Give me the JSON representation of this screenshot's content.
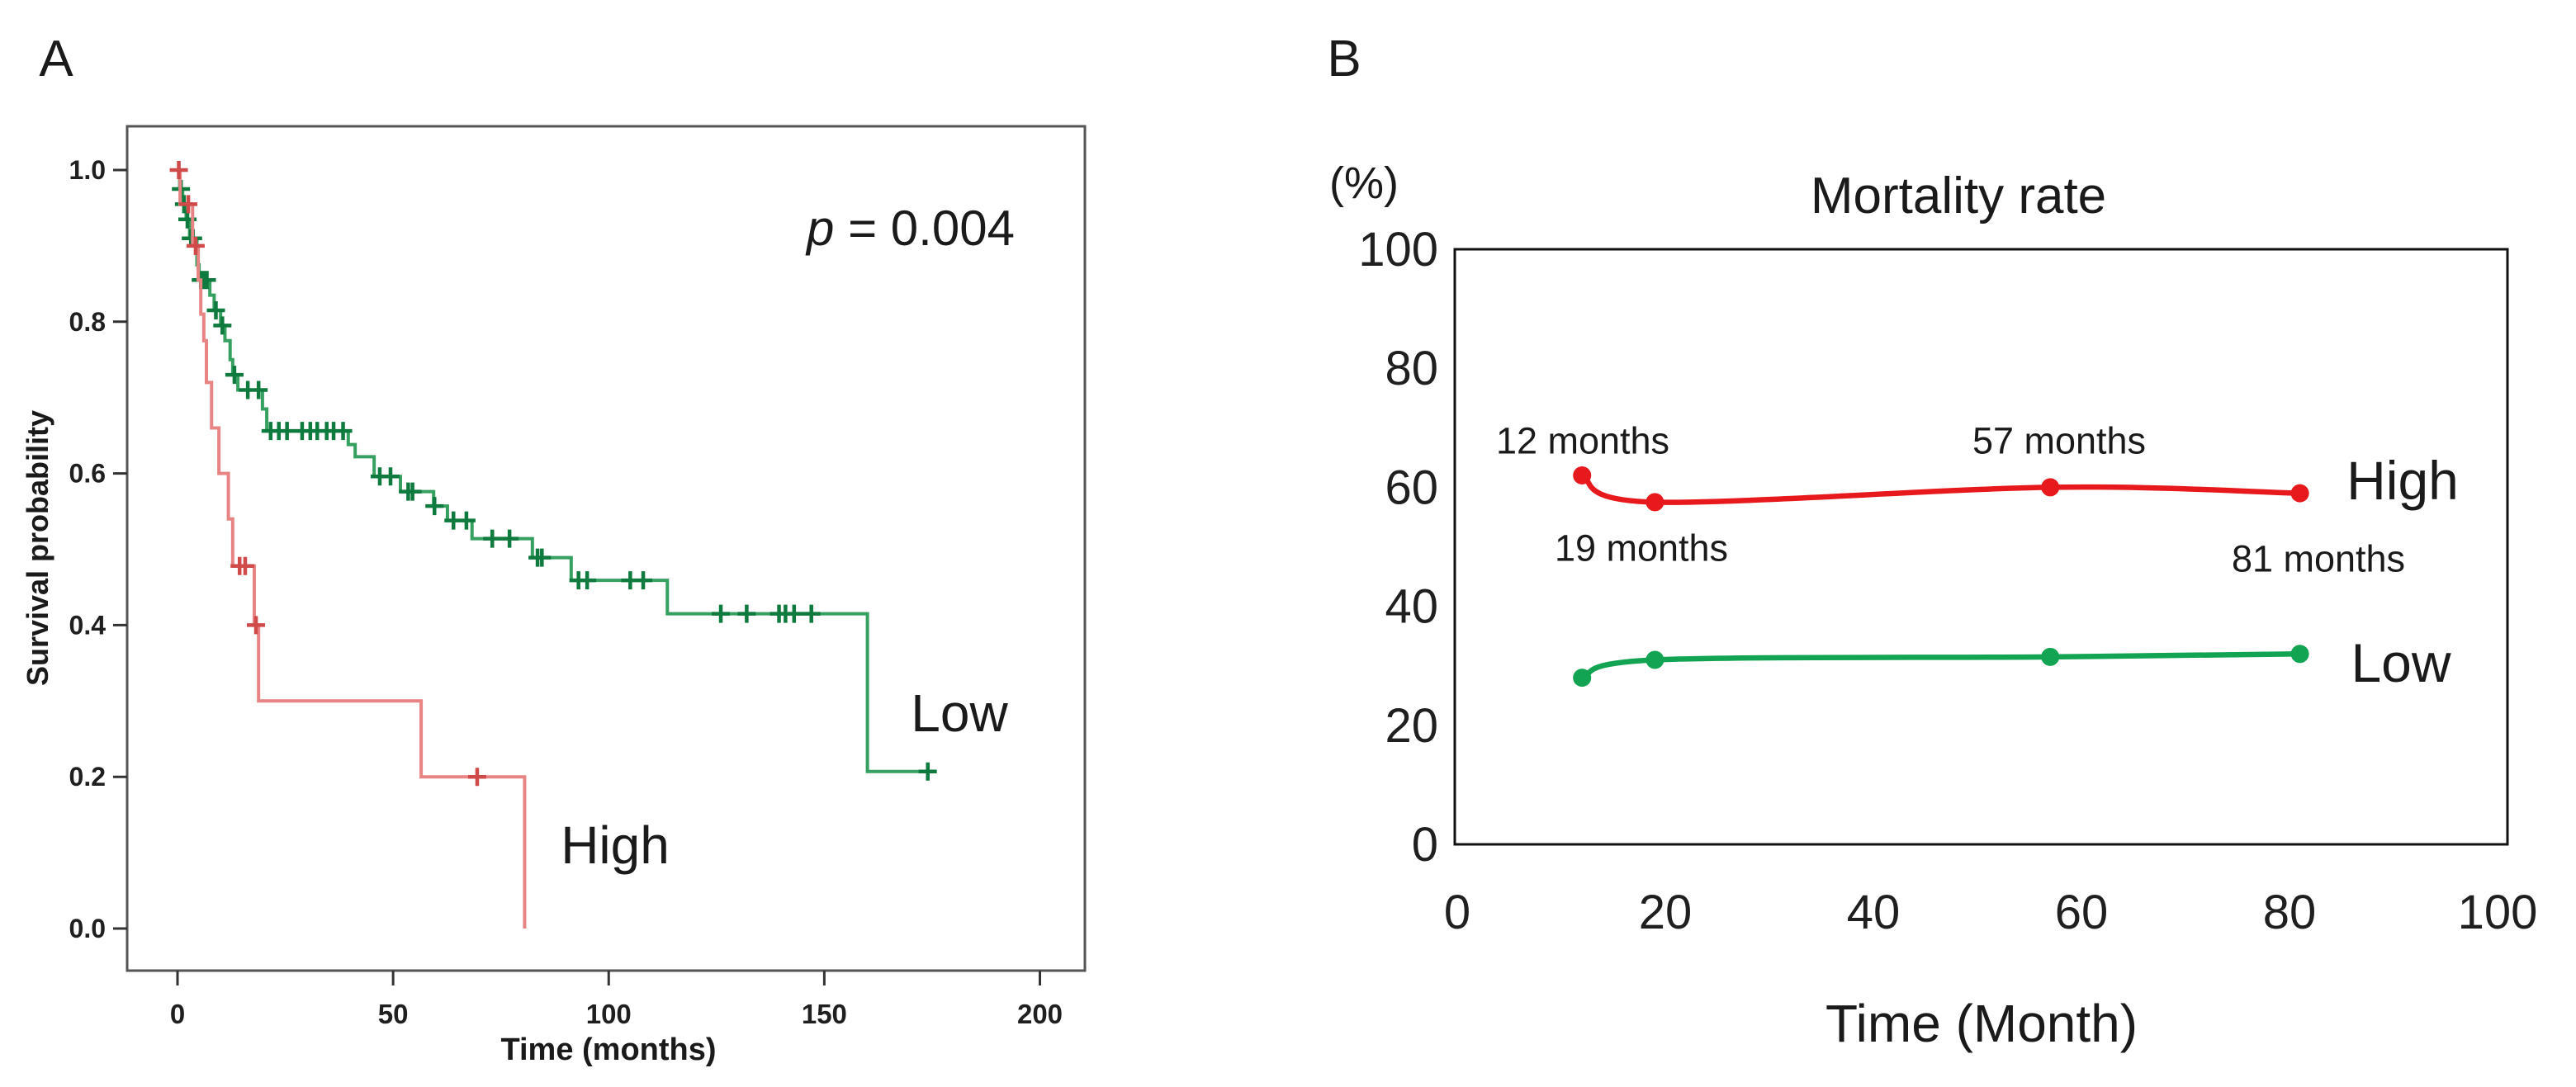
{
  "panel_a": {
    "label": "A",
    "y_axis_title": "Survival probability",
    "x_axis_title": "Time (months)",
    "p_italic": "p",
    "p_rest": " = 0.004",
    "low_label": "Low",
    "high_label": "High",
    "y_ticks": [
      "1.0",
      "0.8",
      "0.6",
      "0.4",
      "0.2",
      "0.0"
    ],
    "x_ticks": [
      "0",
      "50",
      "100",
      "150",
      "200"
    ],
    "colors": {
      "low_line": "#35a05f",
      "low_censor": "#0e7a3e",
      "high_line": "#e88484",
      "high_censor": "#d04a4a",
      "frame": "#555555"
    }
  },
  "panel_b": {
    "label": "B",
    "percent_label": "(%)",
    "title": "Mortality rate",
    "x_axis_title": "Time (Month)",
    "high_label": "High",
    "low_label": "Low",
    "y_ticks": [
      "100",
      "80",
      "60",
      "40",
      "20",
      "0"
    ],
    "x_ticks": [
      "0",
      "20",
      "40",
      "60",
      "80",
      "100"
    ],
    "annotations": {
      "a12": "12 months",
      "a19": "19 months",
      "a57": "57 months",
      "a81": "81 months"
    },
    "colors": {
      "high_line": "#e8191c",
      "low_line": "#12a452",
      "frame": "#111111"
    }
  },
  "chart_data": [
    {
      "type": "line",
      "subtype": "kaplan-meier",
      "panel": "A",
      "title": "",
      "xlabel": "Time (months)",
      "ylabel": "Survival probability",
      "xlim": [
        0,
        200
      ],
      "ylim": [
        0.0,
        1.0
      ],
      "x_tick_values": [
        0,
        50,
        100,
        150,
        200
      ],
      "y_tick_values": [
        1.0,
        0.8,
        0.6,
        0.4,
        0.2,
        0.0
      ],
      "annotation": "p = 0.004",
      "grid": false,
      "series": [
        {
          "name": "Low",
          "color": "green",
          "end_time": 176,
          "steps": [
            [
              0,
              1.0
            ],
            [
              0.5,
              0.975
            ],
            [
              1.2,
              0.955
            ],
            [
              2.0,
              0.935
            ],
            [
              2.8,
              0.91
            ],
            [
              4.5,
              0.875
            ],
            [
              5.0,
              0.855
            ],
            [
              7.5,
              0.835
            ],
            [
              8.5,
              0.815
            ],
            [
              10,
              0.795
            ],
            [
              11,
              0.775
            ],
            [
              12.2,
              0.75
            ],
            [
              12.8,
              0.73
            ],
            [
              14,
              0.71
            ],
            [
              19.7,
              0.685
            ],
            [
              20.7,
              0.656
            ],
            [
              39.6,
              0.638
            ],
            [
              41.2,
              0.622
            ],
            [
              45.6,
              0.596
            ],
            [
              51.7,
              0.576
            ],
            [
              59.4,
              0.557
            ],
            [
              62.6,
              0.538
            ],
            [
              68.3,
              0.514
            ],
            [
              82.3,
              0.489
            ],
            [
              91.3,
              0.459
            ],
            [
              113.6,
              0.415
            ],
            [
              160,
              0.207
            ]
          ],
          "censor_marks": [
            [
              0.8,
              0.975
            ],
            [
              1.5,
              0.955
            ],
            [
              2.3,
              0.935
            ],
            [
              3.1,
              0.91
            ],
            [
              3.6,
              0.91
            ],
            [
              5.4,
              0.855
            ],
            [
              6.1,
              0.855
            ],
            [
              6.8,
              0.855
            ],
            [
              8.9,
              0.815
            ],
            [
              10.4,
              0.795
            ],
            [
              13.2,
              0.73
            ],
            [
              16.3,
              0.71
            ],
            [
              18.8,
              0.71
            ],
            [
              21.6,
              0.656
            ],
            [
              23.5,
              0.656
            ],
            [
              25.4,
              0.656
            ],
            [
              28.9,
              0.656
            ],
            [
              30.8,
              0.656
            ],
            [
              32.4,
              0.656
            ],
            [
              34.6,
              0.656
            ],
            [
              36.2,
              0.656
            ],
            [
              38.4,
              0.656
            ],
            [
              46.9,
              0.596
            ],
            [
              49.4,
              0.596
            ],
            [
              53.5,
              0.576
            ],
            [
              54.5,
              0.576
            ],
            [
              59.6,
              0.557
            ],
            [
              64,
              0.538
            ],
            [
              67,
              0.538
            ],
            [
              73,
              0.514
            ],
            [
              77,
              0.514
            ],
            [
              83.5,
              0.489
            ],
            [
              84.5,
              0.489
            ],
            [
              93,
              0.459
            ],
            [
              95,
              0.459
            ],
            [
              105,
              0.459
            ],
            [
              108,
              0.459
            ],
            [
              126,
              0.415
            ],
            [
              132,
              0.415
            ],
            [
              139.5,
              0.415
            ],
            [
              141,
              0.415
            ],
            [
              143,
              0.415
            ],
            [
              147,
              0.415
            ],
            [
              174,
              0.207
            ]
          ]
        },
        {
          "name": "High",
          "color": "red",
          "end_time": 80.5,
          "steps": [
            [
              0,
              1.0
            ],
            [
              0.6,
              0.955
            ],
            [
              3.5,
              0.9
            ],
            [
              4.8,
              0.855
            ],
            [
              5.4,
              0.81
            ],
            [
              6.1,
              0.775
            ],
            [
              6.7,
              0.72
            ],
            [
              7.9,
              0.66
            ],
            [
              9.6,
              0.6
            ],
            [
              11.8,
              0.54
            ],
            [
              12.8,
              0.478
            ],
            [
              17.8,
              0.4
            ],
            [
              18.8,
              0.3
            ],
            [
              56.5,
              0.2
            ],
            [
              80.5,
              0.0
            ]
          ],
          "censor_marks": [
            [
              0.3,
              1.0
            ],
            [
              2.5,
              0.955
            ],
            [
              4.2,
              0.9
            ],
            [
              14.4,
              0.478
            ],
            [
              15.7,
              0.478
            ],
            [
              18.2,
              0.4
            ],
            [
              69.5,
              0.2
            ]
          ]
        }
      ]
    },
    {
      "type": "line",
      "panel": "B",
      "title": "Mortality rate",
      "xlabel": "Time (Month)",
      "ylabel": "(%)",
      "xlim": [
        0,
        100
      ],
      "ylim": [
        0,
        100
      ],
      "x_tick_values": [
        0,
        20,
        40,
        60,
        80,
        100
      ],
      "y_tick_values": [
        100,
        80,
        60,
        40,
        20,
        0
      ],
      "grid": false,
      "legend_position": "right-of-lines",
      "x": [
        12,
        19,
        57,
        81
      ],
      "series": [
        {
          "name": "High",
          "color": "red",
          "values": [
            62,
            57.5,
            60,
            59
          ]
        },
        {
          "name": "Low",
          "color": "green",
          "values": [
            28,
            31,
            31.5,
            32
          ]
        }
      ],
      "point_annotations": [
        {
          "text": "12 months",
          "x": 12,
          "series": "High",
          "placement": "above"
        },
        {
          "text": "19 months",
          "x": 19,
          "series": "High",
          "placement": "below"
        },
        {
          "text": "57 months",
          "x": 57,
          "series": "High",
          "placement": "above"
        },
        {
          "text": "81 months",
          "x": 81,
          "series": "High",
          "placement": "below"
        }
      ]
    }
  ]
}
